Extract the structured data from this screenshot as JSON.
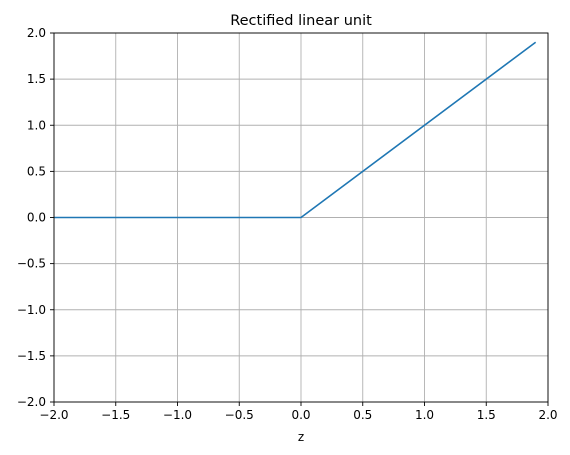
{
  "chart_data": {
    "type": "line",
    "title": "Rectified linear unit",
    "xlabel": "z",
    "ylabel": "",
    "xlim": [
      -2.0,
      2.0
    ],
    "ylim": [
      -2.0,
      2.0
    ],
    "grid": true,
    "x_ticks": [
      -2.0,
      -1.5,
      -1.0,
      -0.5,
      0.0,
      0.5,
      1.0,
      1.5,
      2.0
    ],
    "y_ticks": [
      -2.0,
      -1.5,
      -1.0,
      -0.5,
      0.0,
      0.5,
      1.0,
      1.5,
      2.0
    ],
    "x_tick_labels": [
      "−2.0",
      "−1.5",
      "−1.0",
      "−0.5",
      "0.0",
      "0.5",
      "1.0",
      "1.5",
      "2.0"
    ],
    "y_tick_labels": [
      "−2.0",
      "−1.5",
      "−1.0",
      "−0.5",
      "0.0",
      "0.5",
      "1.0",
      "1.5",
      "2.0"
    ],
    "series": [
      {
        "color": "#1f77b4",
        "points": [
          [
            -2.0,
            0.0
          ],
          [
            0.0,
            0.0
          ],
          [
            1.9,
            1.9
          ]
        ]
      }
    ],
    "colors": {
      "grid": "#b0b0b0",
      "axes": "#000000"
    }
  }
}
